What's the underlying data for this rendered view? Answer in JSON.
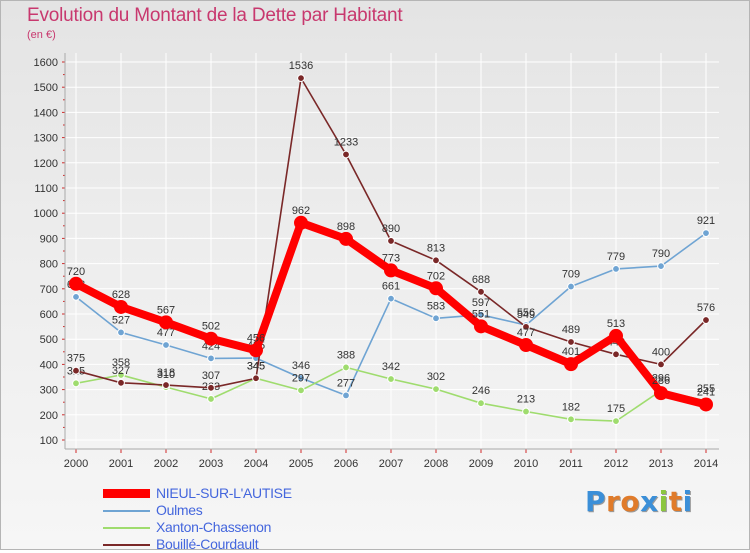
{
  "chart_data": {
    "type": "line",
    "title": "Evolution du Montant de la Dette par Habitant",
    "subtitle": "(en €)",
    "xlabel": "",
    "ylabel": "",
    "x": [
      2000,
      2001,
      2002,
      2003,
      2004,
      2005,
      2006,
      2007,
      2008,
      2009,
      2010,
      2011,
      2012,
      2013,
      2014
    ],
    "ylim": [
      100,
      1600
    ],
    "yticks": [
      100,
      200,
      300,
      400,
      500,
      600,
      700,
      800,
      900,
      1000,
      1100,
      1200,
      1300,
      1400,
      1500,
      1600
    ],
    "grid": true,
    "legend_position": "bottom-left",
    "series": [
      {
        "name": "NIEUL-SUR-L'AUTISE",
        "color": "#ff0000",
        "values": [
          720,
          628,
          567,
          502,
          456,
          962,
          898,
          773,
          702,
          551,
          477,
          401,
          513,
          286,
          241
        ]
      },
      {
        "name": "Oulmes",
        "color": "#6fa4d3",
        "values": [
          668,
          527,
          477,
          424,
          425,
          346,
          277,
          661,
          583,
          597,
          556,
          709,
          779,
          790,
          921
        ]
      },
      {
        "name": "Xanton-Chassenon",
        "color": "#9fdc6e",
        "values": [
          325,
          358,
          310,
          263,
          345,
          297,
          388,
          342,
          302,
          246,
          213,
          182,
          175,
          296,
          255
        ]
      },
      {
        "name": "Bouillé-Courdault",
        "color": "#7a2828",
        "values": [
          375,
          327,
          318,
          307,
          345,
          1536,
          1233,
          890,
          813,
          688,
          549,
          489,
          440,
          400,
          576
        ]
      }
    ]
  },
  "branding": {
    "text": "Proxiti",
    "letter_colors": [
      "#3b8fd8",
      "#e07b2a",
      "#e07b2a",
      "#3b8fd8",
      "#8cc63f",
      "#e07b2a",
      "#3b8fd8"
    ]
  }
}
